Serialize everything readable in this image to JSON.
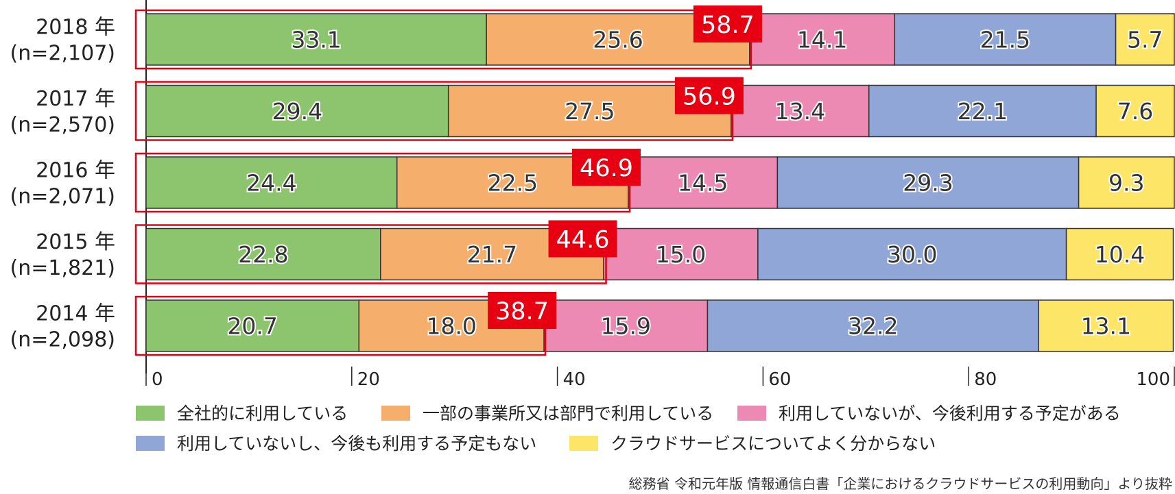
{
  "chart_data": {
    "type": "bar",
    "orientation": "horizontal",
    "stacked": true,
    "categories": [
      {
        "year": "2018 年",
        "n": "(n=2,107)"
      },
      {
        "year": "2017 年",
        "n": "(n=2,570)"
      },
      {
        "year": "2016 年",
        "n": "(n=2,071)"
      },
      {
        "year": "2015 年",
        "n": "(n=1,821)"
      },
      {
        "year": "2014 年",
        "n": "(n=2,098)"
      }
    ],
    "series": [
      {
        "name": "全社的に利用している",
        "color": "#8cc56e",
        "values": [
          33.1,
          29.4,
          24.4,
          22.8,
          20.7
        ]
      },
      {
        "name": "一部の事業所又は部門で利用している",
        "color": "#f5ae6b",
        "values": [
          25.6,
          27.5,
          22.5,
          21.7,
          18.0
        ]
      },
      {
        "name": "利用していないが、今後利用する予定がある",
        "color": "#ec8ab4",
        "values": [
          14.1,
          13.4,
          14.5,
          15.0,
          15.9
        ]
      },
      {
        "name": "利用していないし、今後も利用する予定もない",
        "color": "#8fa6d6",
        "values": [
          21.5,
          22.1,
          29.3,
          30.0,
          32.2
        ]
      },
      {
        "name": "クラウドサービスについてよく分からない",
        "color": "#fde568",
        "values": [
          5.7,
          7.6,
          9.3,
          10.4,
          13.1
        ]
      }
    ],
    "totals_highlight": {
      "color": "#e60012",
      "values": [
        58.7,
        56.9,
        46.9,
        44.6,
        38.7
      ]
    },
    "x_ticks": [
      0,
      20,
      40,
      60,
      80,
      100
    ],
    "xlim": [
      0,
      100
    ],
    "legend_position": "bottom"
  },
  "source": "総務省 令和元年版 情報通信白書「企業におけるクラウドサービスの利用動向」より抜粋"
}
